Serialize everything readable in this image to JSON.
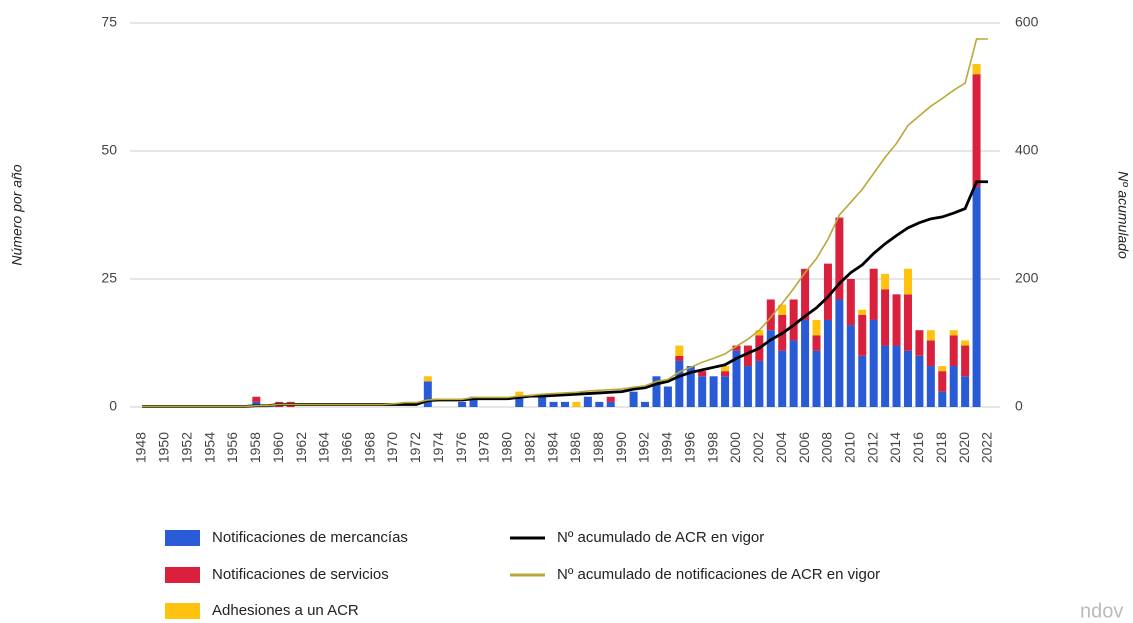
{
  "chart_data": {
    "type": "bar",
    "categories": [
      "1948",
      null,
      "1950",
      null,
      "1952",
      null,
      "1954",
      null,
      "1956",
      null,
      "1958",
      null,
      "1960",
      null,
      "1962",
      null,
      "1964",
      null,
      "1966",
      null,
      "1968",
      null,
      "1970",
      null,
      "1972",
      null,
      "1974",
      null,
      "1976",
      null,
      "1978",
      null,
      "1980",
      null,
      "1982",
      null,
      "1984",
      null,
      "1986",
      null,
      "1988",
      null,
      "1990",
      null,
      "1992",
      null,
      "1994",
      null,
      "1996",
      null,
      "1998",
      null,
      "2000",
      null,
      "2002",
      null,
      "2004",
      null,
      "2006",
      null,
      "2008",
      null,
      "2010",
      null,
      "2012",
      null,
      "2014",
      null,
      "2016",
      null,
      "2018",
      null,
      "2020",
      null,
      "2022"
    ],
    "series": [
      {
        "name": "Notificaciones de mercancías",
        "color": "#2a5bd7",
        "values": [
          0,
          0,
          0,
          0,
          0,
          0,
          0,
          0,
          0,
          0,
          1,
          0,
          0,
          0,
          0,
          0,
          0,
          0,
          0,
          0,
          0,
          0,
          0,
          0,
          0,
          5,
          0,
          0,
          1,
          2,
          0,
          0,
          0,
          2,
          0,
          2,
          1,
          1,
          0,
          2,
          1,
          1,
          0,
          3,
          1,
          6,
          4,
          9,
          8,
          6,
          6,
          6,
          11,
          8,
          9,
          15,
          11,
          13,
          17,
          11,
          17,
          21,
          16,
          10,
          17,
          12,
          12,
          11,
          10,
          8,
          3,
          8,
          6,
          43,
          0
        ]
      },
      {
        "name": "Notificaciones de servicios",
        "color": "#d9213d",
        "values": [
          0,
          0,
          0,
          0,
          0,
          0,
          0,
          0,
          0,
          0,
          1,
          0,
          1,
          1,
          0,
          0,
          0,
          0,
          0,
          0,
          0,
          0,
          0,
          0,
          0,
          0,
          0,
          0,
          0,
          0,
          0,
          0,
          0,
          0,
          0,
          0,
          0,
          0,
          0,
          0,
          0,
          1,
          0,
          0,
          0,
          0,
          0,
          1,
          0,
          1,
          0,
          1,
          1,
          4,
          5,
          6,
          7,
          8,
          10,
          3,
          11,
          16,
          9,
          8,
          10,
          11,
          10,
          11,
          5,
          5,
          4,
          6,
          6,
          22,
          0
        ]
      },
      {
        "name": "Adhesiones a un ACR",
        "color": "#ffc20e",
        "values": [
          0,
          0,
          0,
          0,
          0,
          0,
          0,
          0,
          0,
          0,
          0,
          0,
          0,
          0,
          0,
          0,
          0,
          0,
          0,
          0,
          0,
          0,
          0,
          0,
          0,
          1,
          0,
          0,
          0,
          0,
          0,
          0,
          0,
          1,
          0,
          0,
          0,
          0,
          1,
          0,
          0,
          0,
          0,
          0,
          0,
          0,
          0,
          2,
          0,
          0,
          0,
          1,
          0,
          0,
          1,
          0,
          2,
          0,
          0,
          3,
          0,
          0,
          0,
          1,
          0,
          3,
          0,
          5,
          0,
          2,
          1,
          1,
          1,
          2,
          0
        ]
      },
      {
        "name": "Nº acumulado de ACR en vigor",
        "color": "#000000",
        "axis": "y2",
        "type": "line",
        "values": [
          1,
          1,
          1,
          1,
          1,
          1,
          1,
          1,
          1,
          1,
          2,
          2,
          4,
          4,
          4,
          4,
          4,
          4,
          4,
          4,
          4,
          4,
          4,
          4,
          4,
          10,
          11,
          11,
          11,
          13,
          13,
          13,
          13,
          15,
          17,
          17,
          18,
          19,
          20,
          21,
          22,
          23,
          24,
          28,
          30,
          36,
          40,
          48,
          54,
          58,
          62,
          66,
          76,
          84,
          92,
          105,
          115,
          128,
          142,
          155,
          172,
          193,
          210,
          222,
          240,
          255,
          268,
          280,
          288,
          294,
          297,
          303,
          310,
          352,
          352
        ]
      },
      {
        "name": "Nº acumulado de notificaciones de ACR en vigor",
        "color": "#b8a83a",
        "axis": "y2",
        "type": "line",
        "values": [
          1,
          1,
          1,
          1,
          1,
          1,
          1,
          1,
          1,
          1,
          2,
          2,
          4,
          4,
          4,
          4,
          4,
          4,
          4,
          4,
          4,
          4,
          5,
          7,
          7,
          11,
          12,
          12,
          12,
          15,
          15,
          15,
          15,
          17,
          18,
          20,
          21,
          22,
          23,
          25,
          26,
          27,
          28,
          31,
          33,
          40,
          43,
          55,
          62,
          70,
          76,
          83,
          95,
          106,
          120,
          140,
          162,
          185,
          210,
          232,
          262,
          300,
          320,
          340,
          365,
          390,
          412,
          440,
          455,
          470,
          482,
          495,
          506,
          575,
          575
        ]
      }
    ],
    "ylabel": "Número por año",
    "y2label": "Nº acumulado",
    "ylim": [
      0,
      75
    ],
    "yticks": [
      0,
      25,
      50,
      75
    ],
    "y2lim": [
      0,
      600
    ],
    "y2ticks": [
      0,
      200,
      400,
      600
    ],
    "stacked": true,
    "grid": true,
    "legend": "bottom",
    "watermark": "ndov"
  }
}
